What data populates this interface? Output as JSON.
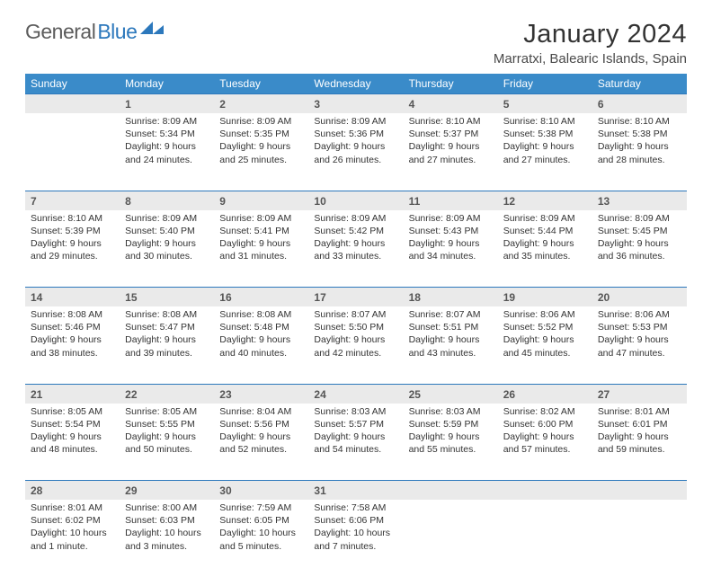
{
  "logo": {
    "text1": "General",
    "text2": "Blue"
  },
  "title": "January 2024",
  "subtitle": "Marratxi, Balearic Islands, Spain",
  "headers": [
    "Sunday",
    "Monday",
    "Tuesday",
    "Wednesday",
    "Thursday",
    "Friday",
    "Saturday"
  ],
  "header_bg": "#3a8bc9",
  "accent": "#2c78bc",
  "daynum_bg": "#eaeaea",
  "weeks": [
    {
      "nums": [
        "",
        "1",
        "2",
        "3",
        "4",
        "5",
        "6"
      ],
      "cells": [
        "",
        "Sunrise: 8:09 AM\nSunset: 5:34 PM\nDaylight: 9 hours and 24 minutes.",
        "Sunrise: 8:09 AM\nSunset: 5:35 PM\nDaylight: 9 hours and 25 minutes.",
        "Sunrise: 8:09 AM\nSunset: 5:36 PM\nDaylight: 9 hours and 26 minutes.",
        "Sunrise: 8:10 AM\nSunset: 5:37 PM\nDaylight: 9 hours and 27 minutes.",
        "Sunrise: 8:10 AM\nSunset: 5:38 PM\nDaylight: 9 hours and 27 minutes.",
        "Sunrise: 8:10 AM\nSunset: 5:38 PM\nDaylight: 9 hours and 28 minutes."
      ]
    },
    {
      "nums": [
        "7",
        "8",
        "9",
        "10",
        "11",
        "12",
        "13"
      ],
      "cells": [
        "Sunrise: 8:10 AM\nSunset: 5:39 PM\nDaylight: 9 hours and 29 minutes.",
        "Sunrise: 8:09 AM\nSunset: 5:40 PM\nDaylight: 9 hours and 30 minutes.",
        "Sunrise: 8:09 AM\nSunset: 5:41 PM\nDaylight: 9 hours and 31 minutes.",
        "Sunrise: 8:09 AM\nSunset: 5:42 PM\nDaylight: 9 hours and 33 minutes.",
        "Sunrise: 8:09 AM\nSunset: 5:43 PM\nDaylight: 9 hours and 34 minutes.",
        "Sunrise: 8:09 AM\nSunset: 5:44 PM\nDaylight: 9 hours and 35 minutes.",
        "Sunrise: 8:09 AM\nSunset: 5:45 PM\nDaylight: 9 hours and 36 minutes."
      ]
    },
    {
      "nums": [
        "14",
        "15",
        "16",
        "17",
        "18",
        "19",
        "20"
      ],
      "cells": [
        "Sunrise: 8:08 AM\nSunset: 5:46 PM\nDaylight: 9 hours and 38 minutes.",
        "Sunrise: 8:08 AM\nSunset: 5:47 PM\nDaylight: 9 hours and 39 minutes.",
        "Sunrise: 8:08 AM\nSunset: 5:48 PM\nDaylight: 9 hours and 40 minutes.",
        "Sunrise: 8:07 AM\nSunset: 5:50 PM\nDaylight: 9 hours and 42 minutes.",
        "Sunrise: 8:07 AM\nSunset: 5:51 PM\nDaylight: 9 hours and 43 minutes.",
        "Sunrise: 8:06 AM\nSunset: 5:52 PM\nDaylight: 9 hours and 45 minutes.",
        "Sunrise: 8:06 AM\nSunset: 5:53 PM\nDaylight: 9 hours and 47 minutes."
      ]
    },
    {
      "nums": [
        "21",
        "22",
        "23",
        "24",
        "25",
        "26",
        "27"
      ],
      "cells": [
        "Sunrise: 8:05 AM\nSunset: 5:54 PM\nDaylight: 9 hours and 48 minutes.",
        "Sunrise: 8:05 AM\nSunset: 5:55 PM\nDaylight: 9 hours and 50 minutes.",
        "Sunrise: 8:04 AM\nSunset: 5:56 PM\nDaylight: 9 hours and 52 minutes.",
        "Sunrise: 8:03 AM\nSunset: 5:57 PM\nDaylight: 9 hours and 54 minutes.",
        "Sunrise: 8:03 AM\nSunset: 5:59 PM\nDaylight: 9 hours and 55 minutes.",
        "Sunrise: 8:02 AM\nSunset: 6:00 PM\nDaylight: 9 hours and 57 minutes.",
        "Sunrise: 8:01 AM\nSunset: 6:01 PM\nDaylight: 9 hours and 59 minutes."
      ]
    },
    {
      "nums": [
        "28",
        "29",
        "30",
        "31",
        "",
        "",
        ""
      ],
      "cells": [
        "Sunrise: 8:01 AM\nSunset: 6:02 PM\nDaylight: 10 hours and 1 minute.",
        "Sunrise: 8:00 AM\nSunset: 6:03 PM\nDaylight: 10 hours and 3 minutes.",
        "Sunrise: 7:59 AM\nSunset: 6:05 PM\nDaylight: 10 hours and 5 minutes.",
        "Sunrise: 7:58 AM\nSunset: 6:06 PM\nDaylight: 10 hours and 7 minutes.",
        "",
        "",
        ""
      ]
    }
  ]
}
